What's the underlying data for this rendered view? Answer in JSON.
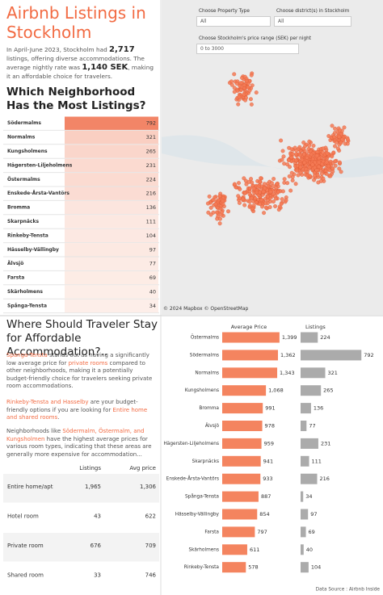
{
  "header": {
    "title": "Airbnb Listings in Stockholm",
    "intro": [
      {
        "text": "In April-June 2023, Stockholm had ",
        "bold": false
      },
      {
        "text": "2,717",
        "bold": true
      },
      {
        "text": " listings, offering diverse accommodations. The average nightly rate was ",
        "bold": false
      },
      {
        "text": "1,140 SEK",
        "bold": true
      },
      {
        "text": ", making it an affordable choice for travelers.",
        "bold": false
      }
    ]
  },
  "neighborhood_table": {
    "title": "Which Neighborhood Has the Most Listings?",
    "rows": [
      {
        "name": "Södermalms",
        "listings": 792
      },
      {
        "name": "Normalms",
        "listings": 321
      },
      {
        "name": "Kungsholmens",
        "listings": 265
      },
      {
        "name": "Hägersten-Liljeholmens",
        "listings": 231
      },
      {
        "name": "Östermalms",
        "listings": 224
      },
      {
        "name": "Enskede-Årsta-Vantörs",
        "listings": 216
      },
      {
        "name": "Bromma",
        "listings": 136
      },
      {
        "name": "Skarpnäcks",
        "listings": 111
      },
      {
        "name": "Rinkeby-Tensta",
        "listings": 104
      },
      {
        "name": "Hässelby-Vällingby",
        "listings": 97
      },
      {
        "name": "Älvsjö",
        "listings": 77
      },
      {
        "name": "Farsta",
        "listings": 69
      },
      {
        "name": "Skärholmens",
        "listings": 40
      },
      {
        "name": "Spånga-Tensta",
        "listings": 34
      }
    ]
  },
  "filters": [
    {
      "label": "Choose Property Type",
      "value": "All"
    },
    {
      "label": "Choose district(s) in Stockholm",
      "value": "All"
    },
    {
      "label": "Choose Stockholm's price range (SEK) per night",
      "value": "0 to 3000"
    }
  ],
  "map": {
    "attribution": "© 2024 Mapbox © OpenStreetMap"
  },
  "affordable": {
    "title": "Where Should Traveler Stay for Affordable Accommodation?..",
    "paragraphs": [
      [
        {
          "text": "Spanga-Tensta",
          "highlight": true
        },
        {
          "text": " stands out as having a significantly low average price for ",
          "highlight": false
        },
        {
          "text": "private rooms",
          "highlight": true
        },
        {
          "text": " compared to other neighborhoods, making it a potentially budget-friendly choice for travelers seeking private room accommodations.",
          "highlight": false
        }
      ],
      [
        {
          "text": "Rinkeby-Tensta and Hasselby",
          "highlight": true
        },
        {
          "text": " are your budget-friendly options if you are looking for ",
          "highlight": false
        },
        {
          "text": "Entire home and shared rooms",
          "highlight": true
        },
        {
          "text": ".",
          "highlight": false
        }
      ],
      [
        {
          "text": "Neighborhoods like ",
          "highlight": false
        },
        {
          "text": "Södermalm, Östermalm, and Kungsholmen",
          "highlight": true
        },
        {
          "text": " have the highest average prices for various room types, indicating that these areas are generally more expensive for accommodation...",
          "highlight": false
        }
      ]
    ]
  },
  "room_table": {
    "columns": [
      "Listings",
      "Avg price"
    ],
    "rows": [
      [
        "Entire home/apt",
        "1,965",
        "1,306"
      ],
      [
        "Hotel room",
        "43",
        "622"
      ],
      [
        "Private room",
        "676",
        "709"
      ],
      [
        "Shared room",
        "33",
        "746"
      ]
    ]
  },
  "chart_data": [
    {
      "type": "hbar",
      "title": "Average Price",
      "color": "#f4845f",
      "xlim": [
        0,
        1500
      ],
      "categories": [
        "Östermalms",
        "Södermalms",
        "Normalms",
        "Kungsholmens",
        "Bromma",
        "Älvsjö",
        "Hägersten-Liljeholmens",
        "Skarpnäcks",
        "Enskede-Årsta-Vantörs",
        "Spånga-Tensta",
        "Hässelby-Vällingby",
        "Farsta",
        "Skärholmens",
        "Rinkeby-Tensta"
      ],
      "values": [
        1399,
        1362,
        1343,
        1068,
        991,
        978,
        959,
        941,
        933,
        887,
        854,
        797,
        611,
        578
      ],
      "value_labels": [
        "1,399",
        "1,362",
        "1,343",
        "1,068",
        "991",
        "978",
        "959",
        "941",
        "933",
        "887",
        "854",
        "797",
        "611",
        "578"
      ]
    },
    {
      "type": "hbar",
      "title": "Listings",
      "color": "#ababab",
      "xlim": [
        0,
        800
      ],
      "values": [
        224,
        792,
        321,
        265,
        136,
        77,
        231,
        111,
        216,
        34,
        97,
        69,
        40,
        104
      ]
    }
  ],
  "source": "Data Source : Airbnb Inside"
}
